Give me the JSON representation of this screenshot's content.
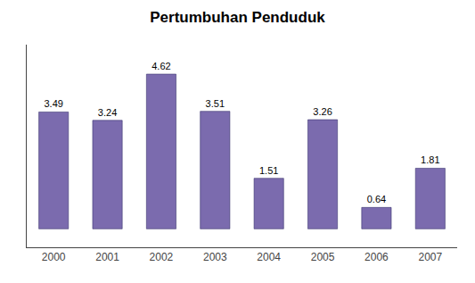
{
  "chart_data": {
    "type": "bar",
    "title": "Pertumbuhan Penduduk",
    "categories": [
      "2000",
      "2001",
      "2002",
      "2003",
      "2004",
      "2005",
      "2006",
      "2007"
    ],
    "values": [
      3.49,
      3.24,
      4.62,
      3.51,
      1.51,
      3.26,
      0.64,
      1.81
    ],
    "color": "#7B6BAE",
    "ylim": [
      -0.55,
      5.5
    ],
    "grid": false,
    "data_labels": true,
    "tick_labels": "x"
  }
}
